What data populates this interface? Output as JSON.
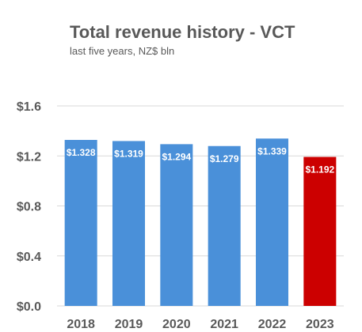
{
  "chart_data": {
    "type": "bar",
    "title": "Total revenue history - VCT",
    "subtitle": "last five years, NZ$ bln",
    "xlabel": "",
    "ylabel": "",
    "categories": [
      "2018",
      "2019",
      "2020",
      "2021",
      "2022",
      "2023"
    ],
    "values": [
      1.328,
      1.319,
      1.294,
      1.279,
      1.339,
      1.192
    ],
    "data_labels": [
      "$1.328",
      "$1.319",
      "$1.294",
      "$1.279",
      "$1.339",
      "$1.192"
    ],
    "ylim": [
      0,
      1.6
    ],
    "yticks": [
      0,
      0.4,
      0.8,
      1.2,
      1.6
    ],
    "ytick_labels": [
      "$0.0",
      "$0.4",
      "$0.8",
      "$1.2",
      "$1.6"
    ],
    "grid": true,
    "legend": "none",
    "colors": [
      "#4A90D9",
      "#4A90D9",
      "#4A90D9",
      "#4A90D9",
      "#4A90D9",
      "#CC0000"
    ],
    "gridline_color": "#D9D9D9"
  }
}
